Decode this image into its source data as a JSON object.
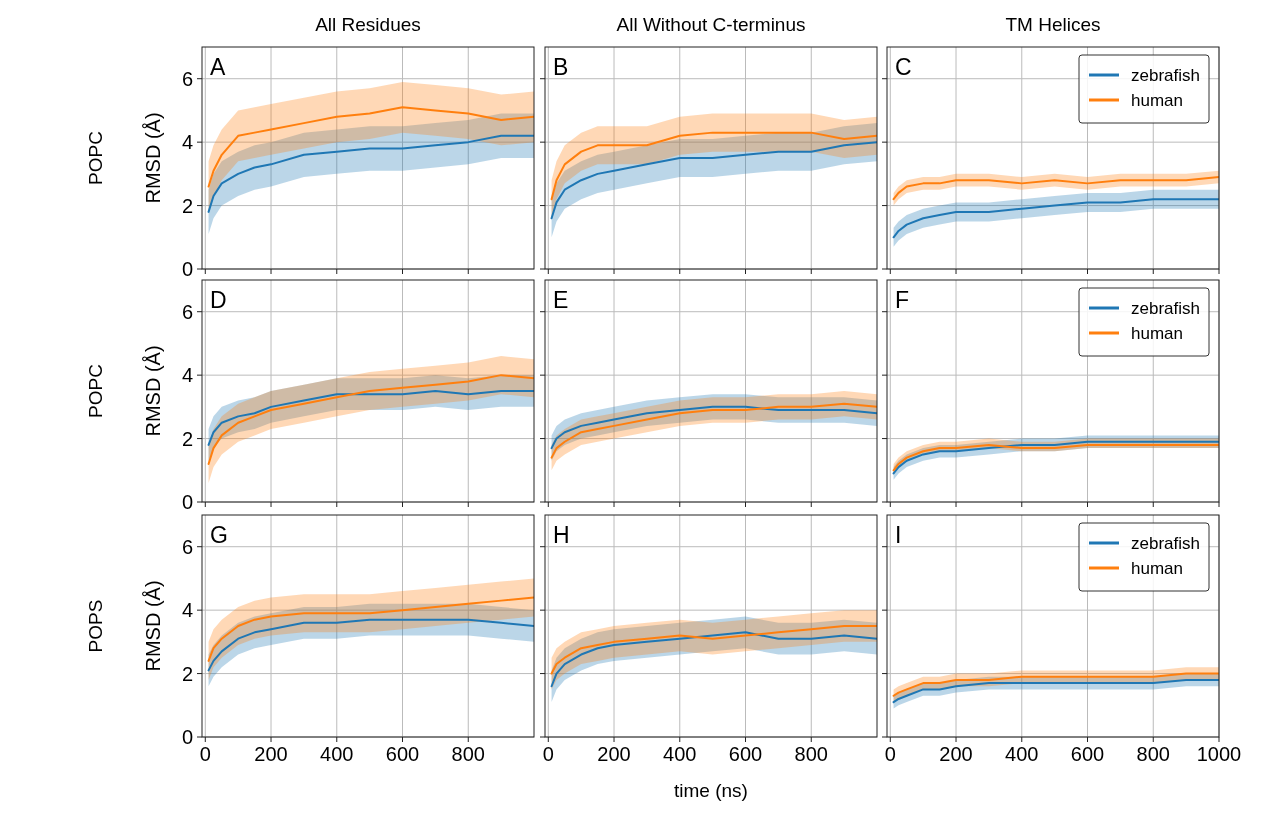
{
  "chart_data": [
    {
      "type": "line",
      "title": "All Residues",
      "ylabel": "RMSD (Å)",
      "annotations": [
        "A",
        "POPC"
      ],
      "x": [
        10,
        25,
        50,
        100,
        150,
        200,
        300,
        400,
        500,
        600,
        700,
        800,
        900,
        1000
      ],
      "xlim": [
        -10,
        1000
      ],
      "xticks": [
        0,
        200,
        400,
        600,
        800
      ],
      "ylim": [
        0,
        7
      ],
      "yticks": [
        0,
        2,
        4,
        6
      ],
      "grid": true,
      "tick_labels": "y",
      "series": [
        {
          "color": "#1f77b4",
          "values": [
            1.8,
            2.3,
            2.7,
            3.0,
            3.2,
            3.3,
            3.6,
            3.7,
            3.8,
            3.8,
            3.9,
            4.0,
            4.2,
            4.2
          ],
          "lower": [
            1.1,
            1.6,
            2.0,
            2.3,
            2.5,
            2.6,
            2.9,
            3.0,
            3.1,
            3.1,
            3.2,
            3.3,
            3.5,
            3.5
          ],
          "upper": [
            2.5,
            3.0,
            3.4,
            3.7,
            3.9,
            4.0,
            4.3,
            4.4,
            4.5,
            4.5,
            4.6,
            4.7,
            4.9,
            4.9
          ]
        },
        {
          "color": "#ff7f0e",
          "values": [
            2.6,
            3.1,
            3.6,
            4.2,
            4.3,
            4.4,
            4.6,
            4.8,
            4.9,
            5.1,
            5.0,
            4.9,
            4.7,
            4.8
          ],
          "lower": [
            1.8,
            2.3,
            2.8,
            3.4,
            3.5,
            3.6,
            3.8,
            4.0,
            4.1,
            4.3,
            4.2,
            4.1,
            3.9,
            4.0
          ],
          "upper": [
            3.4,
            3.9,
            4.4,
            5.0,
            5.1,
            5.2,
            5.4,
            5.6,
            5.7,
            5.9,
            5.8,
            5.7,
            5.5,
            5.6
          ]
        }
      ]
    },
    {
      "type": "line",
      "title": "All Without C-terminus",
      "annotations": [
        "B"
      ],
      "x": [
        10,
        25,
        50,
        100,
        150,
        200,
        300,
        400,
        500,
        600,
        700,
        800,
        900,
        1000
      ],
      "xlim": [
        -10,
        1000
      ],
      "xticks": [
        0,
        200,
        400,
        600,
        800
      ],
      "ylim": [
        0,
        7
      ],
      "yticks": [
        0,
        2,
        4,
        6
      ],
      "grid": true,
      "tick_labels": false,
      "series": [
        {
          "color": "#1f77b4",
          "values": [
            1.6,
            2.1,
            2.5,
            2.8,
            3.0,
            3.1,
            3.3,
            3.5,
            3.5,
            3.6,
            3.7,
            3.7,
            3.9,
            4.0
          ],
          "lower": [
            1.0,
            1.5,
            1.9,
            2.2,
            2.4,
            2.5,
            2.7,
            2.9,
            2.9,
            3.0,
            3.1,
            3.1,
            3.3,
            3.4
          ],
          "upper": [
            2.2,
            2.7,
            3.1,
            3.4,
            3.6,
            3.7,
            3.9,
            4.1,
            4.1,
            4.2,
            4.3,
            4.3,
            4.5,
            4.6
          ]
        },
        {
          "color": "#ff7f0e",
          "values": [
            2.2,
            2.8,
            3.3,
            3.7,
            3.9,
            3.9,
            3.9,
            4.2,
            4.3,
            4.3,
            4.3,
            4.3,
            4.1,
            4.2
          ],
          "lower": [
            1.6,
            2.2,
            2.7,
            3.1,
            3.3,
            3.3,
            3.3,
            3.6,
            3.7,
            3.7,
            3.7,
            3.7,
            3.5,
            3.6
          ],
          "upper": [
            2.8,
            3.4,
            3.9,
            4.3,
            4.5,
            4.5,
            4.5,
            4.8,
            4.9,
            4.9,
            4.9,
            4.9,
            4.7,
            4.8
          ]
        }
      ]
    },
    {
      "type": "line",
      "title": "TM Helices",
      "annotations": [
        "C"
      ],
      "legend": "top right",
      "x": [
        10,
        25,
        50,
        100,
        150,
        200,
        300,
        400,
        500,
        600,
        700,
        800,
        900,
        1000
      ],
      "xlim": [
        -10,
        1000
      ],
      "xticks": [
        0,
        200,
        400,
        600,
        800,
        1000
      ],
      "ylim": [
        0,
        7
      ],
      "yticks": [
        0,
        2,
        4,
        6
      ],
      "grid": true,
      "tick_labels": false,
      "series": [
        {
          "name": "zebrafish",
          "color": "#1f77b4",
          "values": [
            1.0,
            1.2,
            1.4,
            1.6,
            1.7,
            1.8,
            1.8,
            1.9,
            2.0,
            2.1,
            2.1,
            2.2,
            2.2,
            2.2
          ],
          "lower": [
            0.7,
            0.9,
            1.1,
            1.3,
            1.4,
            1.5,
            1.5,
            1.6,
            1.7,
            1.8,
            1.8,
            1.9,
            1.9,
            1.9
          ],
          "upper": [
            1.3,
            1.5,
            1.7,
            1.9,
            2.0,
            2.1,
            2.1,
            2.2,
            2.3,
            2.4,
            2.4,
            2.5,
            2.5,
            2.5
          ]
        },
        {
          "name": "human",
          "color": "#ff7f0e",
          "values": [
            2.2,
            2.4,
            2.6,
            2.7,
            2.7,
            2.8,
            2.8,
            2.7,
            2.8,
            2.7,
            2.8,
            2.8,
            2.8,
            2.9
          ],
          "lower": [
            2.0,
            2.2,
            2.4,
            2.5,
            2.5,
            2.6,
            2.6,
            2.5,
            2.6,
            2.5,
            2.6,
            2.6,
            2.6,
            2.7
          ],
          "upper": [
            2.4,
            2.6,
            2.8,
            2.9,
            2.9,
            3.0,
            3.0,
            2.9,
            3.0,
            2.9,
            3.0,
            3.0,
            3.0,
            3.1
          ]
        }
      ]
    },
    {
      "type": "line",
      "ylabel": "RMSD (Å)",
      "annotations": [
        "D",
        "POPC"
      ],
      "x": [
        10,
        25,
        50,
        100,
        150,
        200,
        300,
        400,
        500,
        600,
        700,
        800,
        900,
        1000
      ],
      "xlim": [
        -10,
        1000
      ],
      "xticks": [
        0,
        200,
        400,
        600,
        800
      ],
      "ylim": [
        0,
        7
      ],
      "yticks": [
        0,
        2,
        4,
        6
      ],
      "grid": true,
      "tick_labels": "y",
      "series": [
        {
          "color": "#1f77b4",
          "values": [
            1.8,
            2.2,
            2.5,
            2.7,
            2.8,
            3.0,
            3.2,
            3.4,
            3.4,
            3.4,
            3.5,
            3.4,
            3.5,
            3.5
          ],
          "lower": [
            1.3,
            1.7,
            2.0,
            2.2,
            2.3,
            2.5,
            2.7,
            2.9,
            2.9,
            2.9,
            3.0,
            2.9,
            3.0,
            3.0
          ],
          "upper": [
            2.3,
            2.7,
            3.0,
            3.2,
            3.3,
            3.5,
            3.7,
            3.9,
            3.9,
            3.9,
            4.0,
            3.9,
            4.0,
            4.0
          ]
        },
        {
          "color": "#ff7f0e",
          "values": [
            1.2,
            1.7,
            2.1,
            2.5,
            2.7,
            2.9,
            3.1,
            3.3,
            3.5,
            3.6,
            3.7,
            3.8,
            4.0,
            3.9
          ],
          "lower": [
            0.6,
            1.1,
            1.5,
            1.9,
            2.1,
            2.3,
            2.5,
            2.7,
            2.9,
            3.0,
            3.1,
            3.2,
            3.4,
            3.3
          ],
          "upper": [
            1.8,
            2.3,
            2.7,
            3.1,
            3.3,
            3.5,
            3.7,
            3.9,
            4.1,
            4.2,
            4.3,
            4.4,
            4.6,
            4.5
          ]
        }
      ]
    },
    {
      "type": "line",
      "annotations": [
        "E"
      ],
      "x": [
        10,
        25,
        50,
        100,
        150,
        200,
        300,
        400,
        500,
        600,
        700,
        800,
        900,
        1000
      ],
      "xlim": [
        -10,
        1000
      ],
      "xticks": [
        0,
        200,
        400,
        600,
        800
      ],
      "ylim": [
        0,
        7
      ],
      "yticks": [
        0,
        2,
        4,
        6
      ],
      "grid": true,
      "tick_labels": false,
      "series": [
        {
          "color": "#1f77b4",
          "values": [
            1.7,
            2.0,
            2.2,
            2.4,
            2.5,
            2.6,
            2.8,
            2.9,
            3.0,
            3.0,
            2.9,
            2.9,
            2.9,
            2.8
          ],
          "lower": [
            1.3,
            1.6,
            1.8,
            2.0,
            2.1,
            2.2,
            2.4,
            2.5,
            2.6,
            2.6,
            2.5,
            2.5,
            2.5,
            2.4
          ],
          "upper": [
            2.1,
            2.4,
            2.6,
            2.8,
            2.9,
            3.0,
            3.2,
            3.3,
            3.4,
            3.4,
            3.3,
            3.3,
            3.3,
            3.2
          ]
        },
        {
          "color": "#ff7f0e",
          "values": [
            1.4,
            1.7,
            1.9,
            2.2,
            2.3,
            2.4,
            2.6,
            2.8,
            2.9,
            2.9,
            3.0,
            3.0,
            3.1,
            3.0
          ],
          "lower": [
            1.0,
            1.3,
            1.5,
            1.8,
            1.9,
            2.0,
            2.2,
            2.4,
            2.5,
            2.5,
            2.6,
            2.6,
            2.7,
            2.6
          ],
          "upper": [
            1.8,
            2.1,
            2.3,
            2.6,
            2.7,
            2.8,
            3.0,
            3.2,
            3.3,
            3.3,
            3.4,
            3.4,
            3.5,
            3.4
          ]
        }
      ]
    },
    {
      "type": "line",
      "annotations": [
        "F"
      ],
      "legend": "top right",
      "x": [
        10,
        25,
        50,
        100,
        150,
        200,
        300,
        400,
        500,
        600,
        700,
        800,
        900,
        1000
      ],
      "xlim": [
        -10,
        1000
      ],
      "xticks": [
        0,
        200,
        400,
        600,
        800,
        1000
      ],
      "ylim": [
        0,
        7
      ],
      "yticks": [
        0,
        2,
        4,
        6
      ],
      "grid": true,
      "tick_labels": false,
      "series": [
        {
          "name": "zebrafish",
          "color": "#1f77b4",
          "values": [
            0.9,
            1.1,
            1.3,
            1.5,
            1.6,
            1.6,
            1.7,
            1.8,
            1.8,
            1.9,
            1.9,
            1.9,
            1.9,
            1.9
          ],
          "lower": [
            0.7,
            0.9,
            1.1,
            1.3,
            1.4,
            1.4,
            1.5,
            1.6,
            1.6,
            1.7,
            1.7,
            1.7,
            1.7,
            1.7
          ],
          "upper": [
            1.1,
            1.3,
            1.5,
            1.7,
            1.8,
            1.8,
            1.9,
            2.0,
            2.0,
            2.1,
            2.1,
            2.1,
            2.1,
            2.1
          ]
        },
        {
          "name": "human",
          "color": "#ff7f0e",
          "values": [
            1.0,
            1.2,
            1.4,
            1.6,
            1.7,
            1.7,
            1.8,
            1.7,
            1.7,
            1.8,
            1.8,
            1.8,
            1.8,
            1.8
          ],
          "lower": [
            0.9,
            1.1,
            1.3,
            1.5,
            1.6,
            1.6,
            1.7,
            1.6,
            1.6,
            1.7,
            1.7,
            1.7,
            1.7,
            1.7
          ],
          "upper": [
            1.2,
            1.4,
            1.6,
            1.8,
            1.9,
            1.9,
            2.0,
            1.9,
            1.9,
            2.0,
            2.0,
            2.0,
            2.0,
            2.0
          ]
        }
      ]
    },
    {
      "type": "line",
      "ylabel": "RMSD (Å)",
      "annotations": [
        "G",
        "POPS"
      ],
      "x": [
        10,
        25,
        50,
        100,
        150,
        200,
        300,
        400,
        500,
        600,
        700,
        800,
        900,
        1000
      ],
      "xlim": [
        -10,
        1000
      ],
      "xticks": [
        0,
        200,
        400,
        600,
        800
      ],
      "ylim": [
        0,
        7
      ],
      "yticks": [
        0,
        2,
        4,
        6
      ],
      "grid": true,
      "series": [
        {
          "color": "#1f77b4",
          "values": [
            2.1,
            2.4,
            2.7,
            3.1,
            3.3,
            3.4,
            3.6,
            3.6,
            3.7,
            3.7,
            3.7,
            3.7,
            3.6,
            3.5
          ],
          "lower": [
            1.6,
            1.9,
            2.2,
            2.6,
            2.8,
            2.9,
            3.1,
            3.1,
            3.2,
            3.2,
            3.2,
            3.2,
            3.1,
            3.0
          ],
          "upper": [
            2.6,
            2.9,
            3.2,
            3.6,
            3.8,
            3.9,
            4.1,
            4.1,
            4.2,
            4.2,
            4.2,
            4.2,
            4.1,
            4.0
          ]
        },
        {
          "color": "#ff7f0e",
          "values": [
            2.4,
            2.8,
            3.1,
            3.5,
            3.7,
            3.8,
            3.9,
            3.9,
            3.9,
            4.0,
            4.1,
            4.2,
            4.3,
            4.4
          ],
          "lower": [
            1.8,
            2.2,
            2.5,
            2.9,
            3.1,
            3.2,
            3.3,
            3.3,
            3.3,
            3.4,
            3.5,
            3.6,
            3.7,
            3.8
          ],
          "upper": [
            3.0,
            3.4,
            3.7,
            4.1,
            4.3,
            4.4,
            4.5,
            4.5,
            4.5,
            4.6,
            4.7,
            4.8,
            4.9,
            5.0
          ]
        }
      ]
    },
    {
      "type": "line",
      "xlabel": "time (ns)",
      "annotations": [
        "H"
      ],
      "x": [
        10,
        25,
        50,
        100,
        150,
        200,
        300,
        400,
        500,
        600,
        700,
        800,
        900,
        1000
      ],
      "xlim": [
        -10,
        1000
      ],
      "xticks": [
        0,
        200,
        400,
        600,
        800
      ],
      "ylim": [
        0,
        7
      ],
      "yticks": [
        0,
        2,
        4,
        6
      ],
      "grid": true,
      "tick_labels": "x",
      "series": [
        {
          "color": "#1f77b4",
          "values": [
            1.6,
            2.0,
            2.3,
            2.6,
            2.8,
            2.9,
            3.0,
            3.1,
            3.2,
            3.3,
            3.1,
            3.1,
            3.2,
            3.1
          ],
          "lower": [
            1.1,
            1.5,
            1.8,
            2.1,
            2.3,
            2.4,
            2.5,
            2.6,
            2.7,
            2.8,
            2.6,
            2.6,
            2.7,
            2.6
          ],
          "upper": [
            2.1,
            2.5,
            2.8,
            3.1,
            3.3,
            3.4,
            3.5,
            3.6,
            3.7,
            3.8,
            3.6,
            3.6,
            3.7,
            3.6
          ]
        },
        {
          "color": "#ff7f0e",
          "values": [
            2.0,
            2.3,
            2.5,
            2.8,
            2.9,
            3.0,
            3.1,
            3.2,
            3.1,
            3.2,
            3.3,
            3.4,
            3.5,
            3.5
          ],
          "lower": [
            1.5,
            1.8,
            2.0,
            2.3,
            2.4,
            2.5,
            2.6,
            2.7,
            2.6,
            2.7,
            2.8,
            2.9,
            3.0,
            3.0
          ],
          "upper": [
            2.5,
            2.8,
            3.0,
            3.3,
            3.4,
            3.5,
            3.6,
            3.7,
            3.6,
            3.7,
            3.8,
            3.9,
            4.0,
            4.0
          ]
        }
      ]
    },
    {
      "type": "line",
      "annotations": [
        "I"
      ],
      "legend": "top right",
      "x": [
        10,
        25,
        50,
        100,
        150,
        200,
        300,
        400,
        500,
        600,
        700,
        800,
        900,
        1000
      ],
      "xlim": [
        -10,
        1000
      ],
      "xticks": [
        0,
        200,
        400,
        600,
        800,
        1000
      ],
      "ylim": [
        0,
        7
      ],
      "yticks": [
        0,
        2,
        4,
        6
      ],
      "grid": true,
      "tick_labels": "x",
      "series": [
        {
          "name": "zebrafish",
          "color": "#1f77b4",
          "values": [
            1.1,
            1.2,
            1.3,
            1.5,
            1.5,
            1.6,
            1.7,
            1.7,
            1.7,
            1.7,
            1.7,
            1.7,
            1.8,
            1.8
          ],
          "lower": [
            0.9,
            1.0,
            1.1,
            1.3,
            1.3,
            1.4,
            1.5,
            1.5,
            1.5,
            1.5,
            1.5,
            1.5,
            1.6,
            1.6
          ],
          "upper": [
            1.3,
            1.4,
            1.5,
            1.7,
            1.7,
            1.8,
            1.9,
            1.9,
            1.9,
            1.9,
            1.9,
            1.9,
            2.0,
            2.0
          ]
        },
        {
          "name": "human",
          "color": "#ff7f0e",
          "values": [
            1.3,
            1.4,
            1.5,
            1.7,
            1.7,
            1.8,
            1.8,
            1.9,
            1.9,
            1.9,
            1.9,
            1.9,
            2.0,
            2.0
          ],
          "lower": [
            1.1,
            1.2,
            1.3,
            1.5,
            1.5,
            1.6,
            1.6,
            1.7,
            1.7,
            1.7,
            1.7,
            1.7,
            1.8,
            1.8
          ],
          "upper": [
            1.5,
            1.6,
            1.7,
            1.9,
            1.9,
            2.0,
            2.0,
            2.1,
            2.1,
            2.1,
            2.1,
            2.1,
            2.2,
            2.2
          ]
        }
      ]
    }
  ]
}
